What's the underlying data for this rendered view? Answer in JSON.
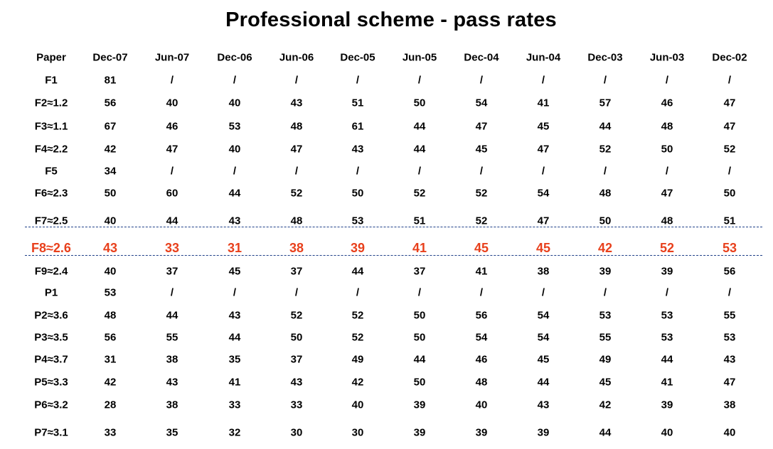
{
  "title": "Professional scheme - pass rates",
  "headers": [
    "Paper",
    "Dec-07",
    "Jun-07",
    "Dec-06",
    "Jun-06",
    "Dec-05",
    "Jun-05",
    "Dec-04",
    "Jun-04",
    "Dec-03",
    "Jun-03",
    "Dec-02"
  ],
  "highlight_color": "#e8401c",
  "divider_color": "#1f3f88",
  "rows": [
    {
      "paper": "F1",
      "values": [
        "81",
        "/",
        "/",
        "/",
        "/",
        "/",
        "/",
        "/",
        "/",
        "/",
        "/"
      ]
    },
    {
      "paper": "F2≈1.2",
      "values": [
        "56",
        "40",
        "40",
        "43",
        "51",
        "50",
        "54",
        "41",
        "57",
        "46",
        "47"
      ]
    },
    {
      "paper": "F3≈1.1",
      "values": [
        "67",
        "46",
        "53",
        "48",
        "61",
        "44",
        "47",
        "45",
        "44",
        "48",
        "47"
      ]
    },
    {
      "paper": "F4≈2.2",
      "values": [
        "42",
        "47",
        "40",
        "47",
        "43",
        "44",
        "45",
        "47",
        "52",
        "50",
        "52"
      ]
    },
    {
      "paper": "F5",
      "values": [
        "34",
        "/",
        "/",
        "/",
        "/",
        "/",
        "/",
        "/",
        "/",
        "/",
        "/"
      ]
    },
    {
      "paper": "F6≈2.3",
      "values": [
        "50",
        "60",
        "44",
        "52",
        "50",
        "52",
        "52",
        "54",
        "48",
        "47",
        "50"
      ]
    },
    {
      "paper": "F7≈2.5",
      "values": [
        "40",
        "44",
        "43",
        "48",
        "53",
        "51",
        "52",
        "47",
        "50",
        "48",
        "51"
      ]
    },
    {
      "paper": "F8≈2.6",
      "values": [
        "43",
        "33",
        "31",
        "38",
        "39",
        "41",
        "45",
        "45",
        "42",
        "52",
        "53"
      ],
      "highlight": true
    },
    {
      "paper": "F9≈2.4",
      "values": [
        "40",
        "37",
        "45",
        "37",
        "44",
        "37",
        "41",
        "38",
        "39",
        "39",
        "56"
      ]
    },
    {
      "paper": "P1",
      "values": [
        "53",
        "/",
        "/",
        "/",
        "/",
        "/",
        "/",
        "/",
        "/",
        "/",
        "/"
      ]
    },
    {
      "paper": "P2≈3.6",
      "values": [
        "48",
        "44",
        "43",
        "52",
        "52",
        "50",
        "56",
        "54",
        "53",
        "53",
        "55"
      ]
    },
    {
      "paper": "P3≈3.5",
      "values": [
        "56",
        "55",
        "44",
        "50",
        "52",
        "50",
        "54",
        "54",
        "55",
        "53",
        "53"
      ]
    },
    {
      "paper": "P4≈3.7",
      "values": [
        "31",
        "38",
        "35",
        "37",
        "49",
        "44",
        "46",
        "45",
        "49",
        "44",
        "43"
      ]
    },
    {
      "paper": "P5≈3.3",
      "values": [
        "42",
        "43",
        "41",
        "43",
        "42",
        "50",
        "48",
        "44",
        "45",
        "41",
        "47"
      ]
    },
    {
      "paper": "P6≈3.2",
      "values": [
        "28",
        "38",
        "33",
        "33",
        "40",
        "39",
        "40",
        "43",
        "42",
        "39",
        "38"
      ]
    },
    {
      "paper": "P7≈3.1",
      "values": [
        "33",
        "35",
        "32",
        "30",
        "30",
        "39",
        "39",
        "39",
        "44",
        "40",
        "40"
      ]
    }
  ]
}
